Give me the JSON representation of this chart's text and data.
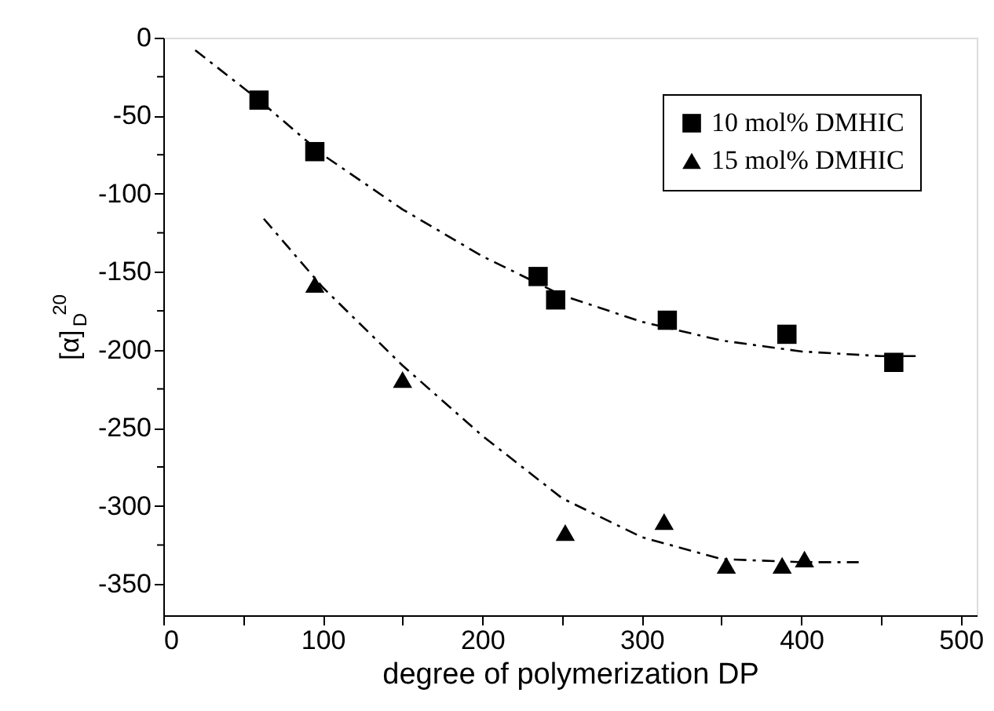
{
  "chart_data": {
    "type": "scatter",
    "xlabel": "degree of polymerization DP",
    "ylabel": "[α]$_{D}$$^{20}$",
    "xlim": [
      0,
      510
    ],
    "ylim": [
      -370,
      0
    ],
    "xticks": [
      0,
      {
        "value": 50,
        "label": null
      },
      100,
      {
        "value": 150,
        "label": null
      },
      200,
      {
        "value": 250,
        "label": null
      },
      300,
      {
        "value": 350,
        "label": null
      },
      400,
      {
        "value": 450,
        "label": null
      },
      500
    ],
    "yticks": [
      0,
      {
        "value": -25,
        "label": null
      },
      -50,
      {
        "value": -75,
        "label": null
      },
      -100,
      {
        "value": -125,
        "label": null
      },
      -150,
      {
        "value": -175,
        "label": null
      },
      -200,
      {
        "value": -225,
        "label": null
      },
      -250,
      {
        "value": -275,
        "label": null
      },
      -300,
      {
        "value": -325,
        "label": null
      },
      -350
    ],
    "grid": false,
    "legend": "top right",
    "series": [
      {
        "name": "10 mol% DMHIC",
        "type": "scatter",
        "marker": "square",
        "color": "#000000",
        "x": [
          60,
          95,
          235,
          246,
          316,
          391,
          458
        ],
        "values": [
          -40,
          -73,
          -153,
          -168,
          -181,
          -190,
          -208
        ]
      },
      {
        "name": "15 mol% DMHIC",
        "type": "scatter",
        "marker": "triangle",
        "color": "#000000",
        "x": [
          95,
          150,
          252,
          314,
          353,
          388,
          402
        ],
        "values": [
          -158,
          -219,
          -317,
          -310,
          -338,
          -338,
          -334
        ]
      },
      {
        "type": "line",
        "marker": "none",
        "line_style": "dashed",
        "color": "#000000",
        "x": [
          20,
          60,
          100,
          150,
          200,
          250,
          300,
          350,
          400,
          450,
          472
        ],
        "values": [
          -8,
          -40,
          -75,
          -110,
          -140,
          -165,
          -182,
          -194,
          -201,
          -204,
          -204
        ]
      },
      {
        "type": "line",
        "marker": "none",
        "line_style": "dashed",
        "color": "#000000",
        "x": [
          63,
          100,
          150,
          200,
          250,
          300,
          350,
          400,
          436
        ],
        "values": [
          -116,
          -160,
          -210,
          -255,
          -295,
          -320,
          -334,
          -336,
          -336
        ]
      }
    ]
  }
}
